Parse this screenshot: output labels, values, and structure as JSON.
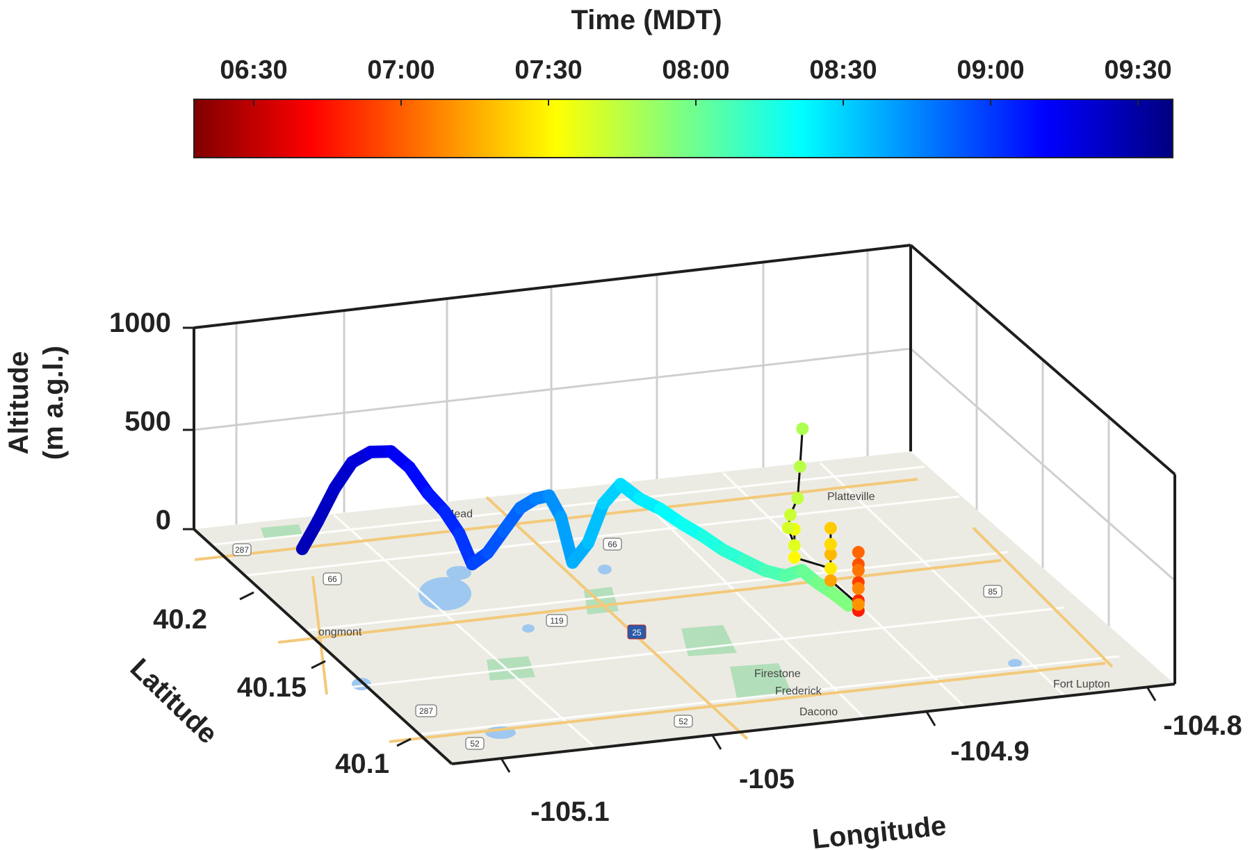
{
  "chart_data": {
    "type": "3d-line-on-map",
    "colorbar": {
      "title": "Time (MDT)",
      "tick_labels": [
        "06:30",
        "07:00",
        "07:30",
        "08:00",
        "08:30",
        "09:00",
        "09:30"
      ],
      "colormap": "jet",
      "range_minutes": [
        375,
        575
      ]
    },
    "axes": {
      "x": {
        "label": "Longitude",
        "ticks": [
          -105.1,
          -105,
          -104.9,
          -104.8
        ],
        "tick_labels": [
          "-105.1",
          "-105",
          "-104.9",
          "-104.8"
        ],
        "range": [
          -105.16,
          -104.77
        ]
      },
      "y": {
        "label": "Latitude",
        "ticks": [
          40.1,
          40.15,
          40.2
        ],
        "tick_labels": [
          "40.1",
          "40.15",
          "40.2"
        ],
        "range": [
          40.07,
          40.28
        ]
      },
      "z": {
        "label_lines": [
          "Altitude",
          "(m a.g.l.)"
        ],
        "ticks": [
          0,
          500,
          1000
        ],
        "tick_labels": [
          "0",
          "500",
          "1000"
        ],
        "range": [
          0,
          1000
        ]
      },
      "grid": true,
      "box": true
    },
    "basemap": {
      "place_labels": [
        "Mead",
        "Platteville",
        "ongmont",
        "Firestone",
        "Frederick",
        "Dacono",
        "Fort Lupton"
      ],
      "road_shields": [
        "287",
        "66",
        "66",
        "119",
        "25",
        "52",
        "287",
        "85",
        "52"
      ]
    },
    "series": [
      {
        "kind": "mobile-track",
        "points": [
          {
            "lon": -105.125,
            "lat": 40.245,
            "alt": 60,
            "t": 565
          },
          {
            "lon": -105.118,
            "lat": 40.243,
            "alt": 200,
            "t": 563
          },
          {
            "lon": -105.11,
            "lat": 40.241,
            "alt": 370,
            "t": 561
          },
          {
            "lon": -105.102,
            "lat": 40.239,
            "alt": 500,
            "t": 559
          },
          {
            "lon": -105.094,
            "lat": 40.236,
            "alt": 560,
            "t": 556
          },
          {
            "lon": -105.085,
            "lat": 40.233,
            "alt": 570,
            "t": 553
          },
          {
            "lon": -105.077,
            "lat": 40.23,
            "alt": 500,
            "t": 550
          },
          {
            "lon": -105.069,
            "lat": 40.227,
            "alt": 380,
            "t": 547
          },
          {
            "lon": -105.062,
            "lat": 40.224,
            "alt": 300,
            "t": 544
          },
          {
            "lon": -105.056,
            "lat": 40.221,
            "alt": 200,
            "t": 541
          },
          {
            "lon": -105.051,
            "lat": 40.218,
            "alt": 60,
            "t": 538
          },
          {
            "lon": -105.044,
            "lat": 40.216,
            "alt": 120,
            "t": 535
          },
          {
            "lon": -105.037,
            "lat": 40.214,
            "alt": 230,
            "t": 532
          },
          {
            "lon": -105.029,
            "lat": 40.212,
            "alt": 350,
            "t": 529
          },
          {
            "lon": -105.022,
            "lat": 40.21,
            "alt": 400,
            "t": 526
          },
          {
            "lon": -105.016,
            "lat": 40.208,
            "alt": 420,
            "t": 523
          },
          {
            "lon": -105.011,
            "lat": 40.206,
            "alt": 320,
            "t": 520
          },
          {
            "lon": -105.006,
            "lat": 40.204,
            "alt": 100,
            "t": 517
          },
          {
            "lon": -104.999,
            "lat": 40.202,
            "alt": 200,
            "t": 514
          },
          {
            "lon": -104.992,
            "lat": 40.2,
            "alt": 400,
            "t": 511
          },
          {
            "lon": -104.984,
            "lat": 40.198,
            "alt": 500,
            "t": 508
          },
          {
            "lon": -104.975,
            "lat": 40.196,
            "alt": 430,
            "t": 505
          },
          {
            "lon": -104.965,
            "lat": 40.194,
            "alt": 380,
            "t": 502
          },
          {
            "lon": -104.955,
            "lat": 40.192,
            "alt": 310,
            "t": 499
          },
          {
            "lon": -104.945,
            "lat": 40.19,
            "alt": 250,
            "t": 496
          },
          {
            "lon": -104.935,
            "lat": 40.188,
            "alt": 180,
            "t": 493
          },
          {
            "lon": -104.925,
            "lat": 40.186,
            "alt": 130,
            "t": 490
          },
          {
            "lon": -104.915,
            "lat": 40.184,
            "alt": 80,
            "t": 487
          },
          {
            "lon": -104.905,
            "lat": 40.183,
            "alt": 50,
            "t": 484
          },
          {
            "lon": -104.897,
            "lat": 40.181,
            "alt": 80,
            "t": 481
          },
          {
            "lon": -104.891,
            "lat": 40.178,
            "alt": 30,
            "t": 478
          },
          {
            "lon": -104.888,
            "lat": 40.17,
            "alt": 20,
            "t": 476
          },
          {
            "lon": -104.886,
            "lat": 40.16,
            "alt": 10,
            "t": 474
          }
        ]
      },
      {
        "kind": "vertical-profiles",
        "points": [
          {
            "lon": -104.884,
            "lat": 40.155,
            "alt": 10,
            "t": 405
          },
          {
            "lon": -104.884,
            "lat": 40.155,
            "alt": 60,
            "t": 408
          },
          {
            "lon": -104.884,
            "lat": 40.155,
            "alt": 150,
            "t": 412
          },
          {
            "lon": -104.884,
            "lat": 40.155,
            "alt": 240,
            "t": 416
          },
          {
            "lon": -104.884,
            "lat": 40.155,
            "alt": 300,
            "t": 420
          },
          {
            "lon": -104.884,
            "lat": 40.155,
            "alt": 210,
            "t": 423
          },
          {
            "lon": -104.884,
            "lat": 40.155,
            "alt": 120,
            "t": 426
          },
          {
            "lon": -104.884,
            "lat": 40.155,
            "alt": 40,
            "t": 429
          },
          {
            "lon": -104.882,
            "lat": 40.18,
            "alt": 20,
            "t": 432
          },
          {
            "lon": -104.882,
            "lat": 40.18,
            "alt": 150,
            "t": 436
          },
          {
            "lon": -104.882,
            "lat": 40.18,
            "alt": 280,
            "t": 440
          },
          {
            "lon": -104.882,
            "lat": 40.18,
            "alt": 200,
            "t": 443
          },
          {
            "lon": -104.882,
            "lat": 40.18,
            "alt": 80,
            "t": 446
          },
          {
            "lon": -104.888,
            "lat": 40.2,
            "alt": 30,
            "t": 449
          },
          {
            "lon": -104.888,
            "lat": 40.2,
            "alt": 170,
            "t": 453
          },
          {
            "lon": -104.888,
            "lat": 40.2,
            "alt": 90,
            "t": 456
          },
          {
            "lon": -104.888,
            "lat": 40.205,
            "alt": 150,
            "t": 458
          },
          {
            "lon": -104.882,
            "lat": 40.212,
            "alt": 170,
            "t": 460
          },
          {
            "lon": -104.876,
            "lat": 40.215,
            "alt": 230,
            "t": 462
          },
          {
            "lon": -104.874,
            "lat": 40.216,
            "alt": 380,
            "t": 464
          },
          {
            "lon": -104.872,
            "lat": 40.217,
            "alt": 560,
            "t": 466
          }
        ]
      }
    ]
  }
}
